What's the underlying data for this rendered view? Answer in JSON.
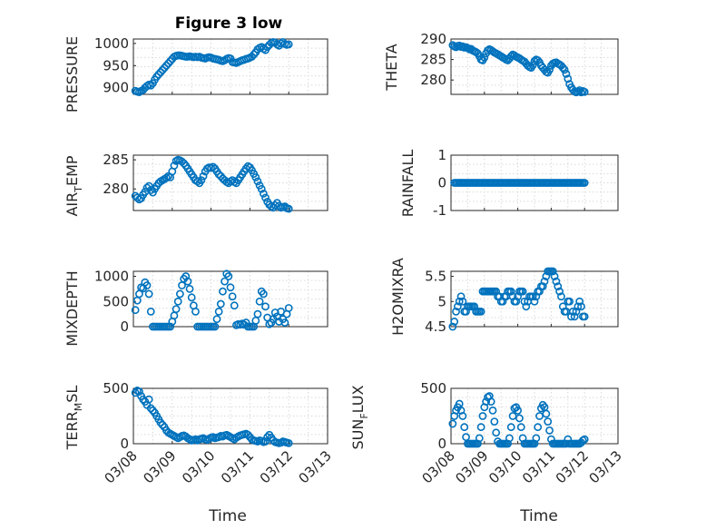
{
  "figure": {
    "title": "Figure 3 low",
    "x_axis_label": "Time",
    "x_tick_labels": [
      "03/08",
      "03/09",
      "03/10",
      "03/11",
      "03/12",
      "03/13"
    ],
    "marker_color": "#0072bd"
  },
  "chart_data": [
    {
      "id": "pressure",
      "type": "scatter",
      "title": "Figure 3 low",
      "ylabel": "PRESSURE",
      "ylim": [
        885,
        1010
      ],
      "yticks": [
        900,
        950,
        1000
      ],
      "xlim": [
        0,
        5
      ],
      "show_xticklabels": false,
      "x": [
        0.05,
        0.1,
        0.15,
        0.2,
        0.25,
        0.3,
        0.35,
        0.4,
        0.45,
        0.5,
        0.55,
        0.6,
        0.65,
        0.7,
        0.75,
        0.8,
        0.85,
        0.9,
        0.95,
        1.0,
        1.05,
        1.1,
        1.15,
        1.2,
        1.25,
        1.3,
        1.35,
        1.4,
        1.45,
        1.5,
        1.55,
        1.6,
        1.65,
        1.7,
        1.75,
        1.8,
        1.85,
        1.9,
        1.95,
        2.0,
        2.05,
        2.1,
        2.15,
        2.2,
        2.25,
        2.3,
        2.35,
        2.4,
        2.45,
        2.5,
        2.55,
        2.6,
        2.65,
        2.7,
        2.75,
        2.8,
        2.85,
        2.9,
        2.95,
        3.0,
        3.05,
        3.1,
        3.15,
        3.2,
        3.25,
        3.3,
        3.35,
        3.4,
        3.45,
        3.5,
        3.55,
        3.6,
        3.65,
        3.7,
        3.75,
        3.8,
        3.85,
        3.9,
        3.95,
        4.0
      ],
      "y": [
        893,
        891,
        890,
        893,
        895,
        900,
        904,
        907,
        905,
        910,
        918,
        925,
        930,
        935,
        940,
        945,
        950,
        955,
        960,
        965,
        970,
        972,
        973,
        973,
        972,
        971,
        970,
        970,
        971,
        970,
        969,
        970,
        969,
        970,
        968,
        967,
        966,
        968,
        969,
        968,
        966,
        965,
        964,
        963,
        961,
        960,
        962,
        965,
        967,
        966,
        958,
        957,
        956,
        958,
        960,
        962,
        963,
        965,
        966,
        968,
        970,
        975,
        980,
        987,
        990,
        992,
        988,
        985,
        992,
        997,
        1001,
        1003,
        1002,
        998,
        995,
        1000,
        1003,
        999,
        997,
        998
      ]
    },
    {
      "id": "theta",
      "type": "scatter",
      "ylabel": "THETA",
      "ylim": [
        276.5,
        290
      ],
      "yticks": [
        280,
        285,
        290
      ],
      "xlim": [
        0,
        5
      ],
      "show_xticklabels": false,
      "x": [
        0.05,
        0.1,
        0.15,
        0.2,
        0.25,
        0.3,
        0.35,
        0.4,
        0.45,
        0.5,
        0.55,
        0.6,
        0.65,
        0.7,
        0.75,
        0.8,
        0.85,
        0.9,
        0.95,
        1.0,
        1.05,
        1.1,
        1.15,
        1.2,
        1.25,
        1.3,
        1.35,
        1.4,
        1.45,
        1.5,
        1.55,
        1.6,
        1.65,
        1.7,
        1.75,
        1.8,
        1.85,
        1.9,
        1.95,
        2.0,
        2.05,
        2.1,
        2.15,
        2.2,
        2.25,
        2.3,
        2.35,
        2.4,
        2.45,
        2.5,
        2.55,
        2.6,
        2.65,
        2.7,
        2.75,
        2.8,
        2.85,
        2.9,
        2.95,
        3.0,
        3.05,
        3.1,
        3.15,
        3.2,
        3.25,
        3.3,
        3.35,
        3.4,
        3.45,
        3.5,
        3.55,
        3.6,
        3.65,
        3.7,
        3.75,
        3.8,
        3.85,
        3.9,
        3.95,
        4.0
      ],
      "y": [
        288.5,
        288.2,
        288.0,
        288.3,
        288.4,
        288.1,
        288.2,
        287.9,
        288.0,
        287.8,
        287.5,
        287.6,
        287.2,
        287.0,
        286.8,
        286.5,
        285.8,
        285.0,
        284.8,
        285.5,
        286.5,
        287.2,
        287.5,
        287.3,
        287.0,
        286.7,
        286.5,
        286.3,
        286.0,
        285.8,
        285.5,
        285.3,
        285.0,
        284.8,
        285.2,
        285.8,
        286.2,
        286.0,
        285.7,
        285.5,
        285.3,
        285.0,
        284.7,
        284.5,
        284.0,
        283.5,
        283.2,
        283.0,
        283.6,
        284.6,
        285.0,
        284.8,
        284.3,
        283.5,
        283.0,
        282.5,
        282.0,
        281.8,
        282.5,
        283.5,
        284.0,
        284.2,
        284.3,
        284.0,
        283.8,
        283.5,
        283.0,
        282.5,
        281.5,
        280.3,
        279.0,
        278.2,
        277.6,
        277.2,
        277.0,
        277.2,
        277.5,
        277.0,
        277.3,
        277.1
      ]
    },
    {
      "id": "air_temp",
      "type": "scatter",
      "ylabel": "AIR",
      "ylabel_sub": "T",
      "ylabel_tail": "EMP",
      "ylim": [
        276.3,
        285.8
      ],
      "yticks": [
        280,
        285
      ],
      "xlim": [
        0,
        5
      ],
      "show_xticklabels": false,
      "x": [
        0.05,
        0.1,
        0.15,
        0.2,
        0.25,
        0.3,
        0.35,
        0.4,
        0.45,
        0.5,
        0.55,
        0.6,
        0.65,
        0.7,
        0.75,
        0.8,
        0.85,
        0.9,
        0.95,
        1.0,
        1.05,
        1.1,
        1.15,
        1.2,
        1.25,
        1.3,
        1.35,
        1.4,
        1.45,
        1.5,
        1.55,
        1.6,
        1.65,
        1.7,
        1.75,
        1.8,
        1.85,
        1.9,
        1.95,
        2.0,
        2.05,
        2.1,
        2.15,
        2.2,
        2.25,
        2.3,
        2.35,
        2.4,
        2.45,
        2.5,
        2.55,
        2.6,
        2.65,
        2.7,
        2.75,
        2.8,
        2.85,
        2.9,
        2.95,
        3.0,
        3.05,
        3.1,
        3.15,
        3.2,
        3.25,
        3.3,
        3.35,
        3.4,
        3.45,
        3.5,
        3.55,
        3.6,
        3.65,
        3.7,
        3.75,
        3.8,
        3.85,
        3.9,
        3.95,
        4.0
      ],
      "y": [
        278.8,
        278.5,
        278.2,
        278.4,
        279.0,
        279.5,
        280.2,
        280.5,
        279.8,
        279.4,
        280.0,
        280.5,
        281.0,
        281.3,
        281.5,
        281.7,
        281.9,
        282.2,
        282.0,
        283.0,
        284.0,
        284.8,
        285.0,
        284.9,
        284.7,
        284.4,
        284.0,
        283.5,
        283.0,
        282.5,
        282.0,
        281.5,
        281.3,
        281.0,
        281.5,
        282.2,
        283.0,
        283.5,
        283.7,
        283.6,
        283.8,
        283.5,
        283.0,
        282.5,
        282.2,
        281.8,
        281.5,
        281.2,
        281.0,
        281.3,
        281.5,
        281.2,
        281.0,
        281.5,
        282.0,
        282.5,
        283.0,
        283.5,
        283.9,
        283.7,
        283.2,
        282.6,
        282.0,
        281.3,
        280.6,
        280.0,
        279.2,
        278.5,
        277.8,
        277.3,
        277.0,
        276.8,
        277.2,
        277.6,
        277.1,
        276.8,
        276.9,
        277.0,
        276.7,
        276.6
      ]
    },
    {
      "id": "rainfall",
      "type": "scatter",
      "ylabel": "RAINFALL",
      "ylim": [
        -1,
        1
      ],
      "yticks": [
        -1,
        0,
        1
      ],
      "xlim": [
        0,
        5
      ],
      "show_xticklabels": false,
      "x": [
        0.1,
        0.15,
        0.2,
        0.25,
        0.3,
        0.35,
        0.4,
        0.45,
        0.5,
        0.55,
        0.6,
        0.65,
        0.7,
        0.75,
        0.8,
        0.85,
        0.9,
        0.95,
        1.0,
        1.05,
        1.1,
        1.15,
        1.2,
        1.25,
        1.3,
        1.35,
        1.4,
        1.45,
        1.5,
        1.55,
        1.6,
        1.65,
        1.7,
        1.75,
        1.8,
        1.85,
        1.9,
        1.95,
        2.0,
        2.05,
        2.1,
        2.15,
        2.2,
        2.25,
        2.3,
        2.35,
        2.4,
        2.45,
        2.5,
        2.55,
        2.6,
        2.65,
        2.7,
        2.75,
        2.8,
        2.85,
        2.9,
        2.95,
        3.0,
        3.05,
        3.1,
        3.15,
        3.2,
        3.25,
        3.3,
        3.35,
        3.4,
        3.45,
        3.5,
        3.55,
        3.6,
        3.65,
        3.7,
        3.75,
        3.8,
        3.85,
        3.9,
        3.95,
        4.0
      ],
      "y": [
        0,
        0,
        0,
        0,
        0,
        0,
        0,
        0,
        0,
        0,
        0,
        0,
        0,
        0,
        0,
        0,
        0,
        0,
        0,
        0,
        0,
        0,
        0,
        0,
        0,
        0,
        0,
        0,
        0,
        0,
        0,
        0,
        0,
        0,
        0,
        0,
        0,
        0,
        0,
        0,
        0,
        0,
        0,
        0,
        0,
        0,
        0,
        0,
        0,
        0,
        0,
        0,
        0,
        0,
        0,
        0,
        0,
        0,
        0,
        0,
        0,
        0,
        0,
        0,
        0,
        0,
        0,
        0,
        0,
        0,
        0,
        0,
        0,
        0,
        0,
        0,
        0,
        0,
        0
      ]
    },
    {
      "id": "mixdepth",
      "type": "scatter",
      "ylabel": "MIXDEPTH",
      "ylim": [
        0,
        1100
      ],
      "yticks": [
        0,
        500,
        1000
      ],
      "xlim": [
        0,
        5
      ],
      "show_xticklabels": false,
      "x": [
        0.05,
        0.1,
        0.15,
        0.2,
        0.25,
        0.3,
        0.35,
        0.4,
        0.45,
        0.5,
        0.55,
        0.6,
        0.65,
        0.7,
        0.75,
        0.8,
        0.85,
        0.9,
        0.95,
        1.0,
        1.05,
        1.1,
        1.15,
        1.2,
        1.25,
        1.3,
        1.35,
        1.4,
        1.45,
        1.5,
        1.55,
        1.6,
        1.65,
        1.7,
        1.75,
        1.8,
        1.85,
        1.9,
        1.95,
        2.0,
        2.05,
        2.1,
        2.15,
        2.2,
        2.25,
        2.3,
        2.35,
        2.4,
        2.45,
        2.5,
        2.55,
        2.6,
        2.65,
        2.7,
        2.75,
        2.8,
        2.85,
        2.9,
        2.95,
        3.0,
        3.05,
        3.1,
        3.15,
        3.2,
        3.25,
        3.3,
        3.35,
        3.4,
        3.45,
        3.5,
        3.55,
        3.6,
        3.65,
        3.7,
        3.75,
        3.8,
        3.85,
        3.9,
        3.95,
        4.0
      ],
      "y": [
        330,
        520,
        650,
        780,
        760,
        880,
        820,
        650,
        300,
        0,
        0,
        0,
        0,
        0,
        0,
        0,
        0,
        0,
        0,
        100,
        220,
        350,
        500,
        650,
        820,
        950,
        1000,
        900,
        750,
        580,
        420,
        300,
        0,
        0,
        0,
        0,
        0,
        0,
        0,
        0,
        0,
        0,
        150,
        300,
        450,
        700,
        900,
        1050,
        1000,
        780,
        600,
        420,
        30,
        50,
        40,
        60,
        40,
        80,
        0,
        0,
        0,
        0,
        120,
        250,
        500,
        700,
        650,
        400,
        180,
        50,
        80,
        150,
        280,
        200,
        100,
        300,
        150,
        80,
        250,
        370
      ]
    },
    {
      "id": "h2omixra",
      "type": "scatter",
      "ylabel": "H2OMIXRA",
      "ylim": [
        4.5,
        5.6
      ],
      "yticks": [
        4.5,
        5,
        5.5
      ],
      "xlim": [
        0,
        5
      ],
      "show_xticklabels": false,
      "x": [
        0.05,
        0.1,
        0.15,
        0.2,
        0.25,
        0.3,
        0.35,
        0.4,
        0.45,
        0.5,
        0.55,
        0.6,
        0.65,
        0.7,
        0.75,
        0.8,
        0.85,
        0.9,
        0.95,
        1.0,
        1.05,
        1.1,
        1.15,
        1.2,
        1.25,
        1.3,
        1.35,
        1.4,
        1.45,
        1.5,
        1.55,
        1.6,
        1.65,
        1.7,
        1.75,
        1.8,
        1.85,
        1.9,
        1.95,
        2.0,
        2.05,
        2.1,
        2.15,
        2.2,
        2.25,
        2.3,
        2.35,
        2.4,
        2.45,
        2.5,
        2.55,
        2.6,
        2.65,
        2.7,
        2.75,
        2.8,
        2.85,
        2.9,
        2.95,
        3.0,
        3.05,
        3.1,
        3.15,
        3.2,
        3.25,
        3.3,
        3.35,
        3.4,
        3.45,
        3.5,
        3.55,
        3.6,
        3.65,
        3.7,
        3.75,
        3.8,
        3.85,
        3.9,
        3.95,
        4.0
      ],
      "y": [
        4.5,
        4.6,
        4.8,
        4.9,
        5.0,
        5.1,
        5.0,
        4.8,
        4.8,
        4.9,
        4.9,
        4.9,
        4.9,
        4.9,
        4.8,
        4.8,
        4.8,
        4.8,
        5.2,
        5.2,
        5.2,
        5.2,
        5.2,
        5.2,
        5.2,
        5.2,
        5.2,
        5.1,
        5.1,
        5.0,
        5.0,
        5.1,
        5.1,
        5.2,
        5.2,
        5.2,
        5.1,
        5.0,
        5.0,
        5.1,
        5.2,
        5.2,
        5.2,
        5.0,
        4.9,
        5.0,
        5.1,
        5.1,
        5.1,
        5.0,
        5.1,
        5.2,
        5.2,
        5.3,
        5.3,
        5.4,
        5.5,
        5.6,
        5.6,
        5.6,
        5.6,
        5.5,
        5.4,
        5.3,
        5.2,
        5.1,
        4.9,
        4.8,
        4.8,
        5.0,
        5.0,
        4.7,
        4.8,
        4.7,
        4.8,
        4.9,
        5.0,
        4.9,
        4.7,
        4.7
      ]
    },
    {
      "id": "terr_msl",
      "type": "scatter",
      "ylabel": "TERR",
      "ylabel_sub": "M",
      "ylabel_tail": "SL",
      "ylim": [
        0,
        500
      ],
      "yticks": [
        0,
        500
      ],
      "xlim": [
        0,
        5
      ],
      "show_xticklabels": true,
      "x": [
        0.05,
        0.1,
        0.15,
        0.2,
        0.25,
        0.3,
        0.35,
        0.4,
        0.45,
        0.5,
        0.55,
        0.6,
        0.65,
        0.7,
        0.75,
        0.8,
        0.85,
        0.9,
        0.95,
        1.0,
        1.05,
        1.1,
        1.15,
        1.2,
        1.25,
        1.3,
        1.35,
        1.4,
        1.45,
        1.5,
        1.55,
        1.6,
        1.65,
        1.7,
        1.75,
        1.8,
        1.85,
        1.9,
        1.95,
        2.0,
        2.05,
        2.1,
        2.15,
        2.2,
        2.25,
        2.3,
        2.35,
        2.4,
        2.45,
        2.5,
        2.55,
        2.6,
        2.65,
        2.7,
        2.75,
        2.8,
        2.85,
        2.9,
        2.95,
        3.0,
        3.05,
        3.1,
        3.15,
        3.2,
        3.25,
        3.3,
        3.35,
        3.4,
        3.45,
        3.5,
        3.55,
        3.6,
        3.65,
        3.7,
        3.75,
        3.8,
        3.85,
        3.9,
        3.95,
        4.0
      ],
      "y": [
        460,
        480,
        470,
        430,
        400,
        380,
        350,
        400,
        320,
        300,
        280,
        250,
        220,
        190,
        170,
        150,
        120,
        100,
        90,
        80,
        70,
        60,
        50,
        60,
        70,
        75,
        65,
        50,
        40,
        30,
        35,
        40,
        30,
        40,
        45,
        50,
        40,
        35,
        45,
        55,
        60,
        50,
        55,
        60,
        70,
        65,
        75,
        80,
        70,
        60,
        50,
        40,
        55,
        65,
        75,
        80,
        85,
        90,
        80,
        60,
        40,
        30,
        25,
        20,
        30,
        25,
        15,
        20,
        60,
        80,
        55,
        30,
        15,
        10,
        5,
        10,
        20,
        15,
        10,
        5
      ]
    },
    {
      "id": "sun_flux",
      "type": "scatter",
      "ylabel": "SUN",
      "ylabel_sub": "F",
      "ylabel_tail": "LUX",
      "ylim": [
        0,
        500
      ],
      "yticks": [
        0,
        500
      ],
      "xlim": [
        0,
        5
      ],
      "show_xticklabels": true,
      "x": [
        0.05,
        0.1,
        0.15,
        0.2,
        0.25,
        0.3,
        0.35,
        0.4,
        0.45,
        0.5,
        0.55,
        0.6,
        0.65,
        0.7,
        0.75,
        0.8,
        0.85,
        0.9,
        0.95,
        1.0,
        1.05,
        1.1,
        1.15,
        1.2,
        1.25,
        1.3,
        1.35,
        1.4,
        1.45,
        1.5,
        1.55,
        1.6,
        1.65,
        1.7,
        1.75,
        1.8,
        1.85,
        1.9,
        1.95,
        2.0,
        2.05,
        2.1,
        2.15,
        2.2,
        2.25,
        2.3,
        2.35,
        2.4,
        2.45,
        2.5,
        2.55,
        2.6,
        2.65,
        2.7,
        2.75,
        2.8,
        2.85,
        2.9,
        2.95,
        3.0,
        3.05,
        3.1,
        3.15,
        3.2,
        3.25,
        3.3,
        3.35,
        3.4,
        3.45,
        3.5,
        3.55,
        3.6,
        3.65,
        3.7,
        3.75,
        3.8,
        3.85,
        3.9,
        3.95,
        4.0
      ],
      "y": [
        180,
        250,
        300,
        330,
        360,
        300,
        250,
        150,
        60,
        0,
        0,
        0,
        0,
        0,
        0,
        0,
        50,
        150,
        250,
        330,
        380,
        420,
        430,
        380,
        300,
        200,
        100,
        20,
        0,
        0,
        0,
        0,
        0,
        0,
        50,
        150,
        250,
        320,
        330,
        300,
        230,
        150,
        50,
        0,
        0,
        0,
        0,
        0,
        0,
        0,
        50,
        150,
        250,
        320,
        350,
        330,
        270,
        200,
        120,
        40,
        0,
        0,
        0,
        0,
        0,
        0,
        0,
        0,
        0,
        40,
        0,
        0,
        0,
        0,
        0,
        0,
        0,
        10,
        30,
        40
      ]
    }
  ]
}
